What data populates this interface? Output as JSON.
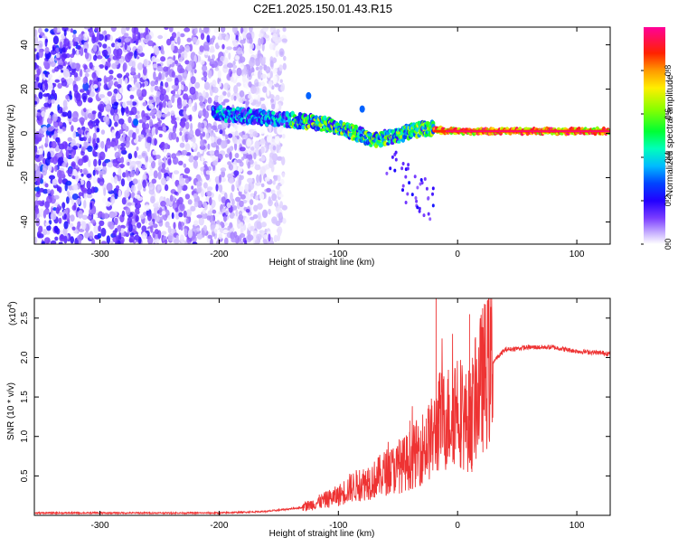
{
  "title": "C2E1.2025.150.01.43.R15",
  "chart_data": [
    {
      "type": "heatmap",
      "xlabel": "Height of straight line (km)",
      "ylabel": "Frequency (Hz)",
      "xlim": [
        -355,
        128
      ],
      "ylim": [
        -50,
        48
      ],
      "xticks": [
        -300,
        -200,
        -100,
        0,
        100
      ],
      "yticks": [
        -40,
        -20,
        0,
        20,
        40
      ],
      "grid": false,
      "colorbar": {
        "label": "Normalized spectral amplitude",
        "range": [
          0,
          1
        ],
        "ticks": [
          "0.0",
          "0.2",
          "0.4",
          "0.6",
          "0.8"
        ],
        "colors": [
          "#ffffff",
          "#9966ff",
          "#3300ff",
          "#0000ff",
          "#00ccff",
          "#00ff99",
          "#00ff00",
          "#ccff00",
          "#ffcc00",
          "#ff3300",
          "#ff0066",
          "#ff0099"
        ]
      },
      "trace": {
        "x": [
          -200,
          -180,
          -160,
          -140,
          -120,
          -100,
          -90,
          -80,
          -70,
          -60,
          -50,
          -40,
          -30,
          -20,
          -10,
          0,
          20,
          40,
          60,
          80,
          100,
          128
        ],
        "y": [
          9,
          8,
          7,
          6,
          5,
          3,
          1,
          -1,
          -3,
          -2,
          -1,
          1,
          2,
          2,
          1,
          1,
          1,
          1,
          1,
          1,
          1,
          1
        ]
      },
      "features": [
        {
          "x": -125,
          "y": 17
        },
        {
          "x": -80,
          "y": 11
        },
        {
          "x": -270,
          "y": 5
        }
      ]
    },
    {
      "type": "line",
      "xlabel": "Height of straight line (km)",
      "ylabel": "SNR (10 * v/v)",
      "y_multiplier": "(x10",
      "y_multiplier_exp": "4",
      "xlim": [
        -355,
        128
      ],
      "ylim": [
        0,
        2.75
      ],
      "xticks": [
        -300,
        -200,
        -100,
        0,
        100
      ],
      "yticks": [
        0.5,
        1.0,
        1.5,
        2.0,
        2.5
      ],
      "ytick_labels": [
        "0.5",
        "1.0",
        "1.5",
        "2.0",
        "2.5"
      ],
      "grid": false,
      "series": [
        {
          "color": "#ee3333",
          "x": [
            -355,
            -300,
            -200,
            -160,
            -130,
            -110,
            -100,
            -90,
            -80,
            -70,
            -60,
            -50,
            -40,
            -30,
            -20,
            -15,
            -10,
            -5,
            0,
            5,
            10,
            20,
            30,
            40,
            60,
            80,
            100,
            128
          ],
          "y": [
            0.03,
            0.03,
            0.03,
            0.05,
            0.1,
            0.2,
            0.25,
            0.35,
            0.4,
            0.45,
            0.55,
            0.6,
            0.7,
            0.85,
            1.0,
            1.2,
            1.2,
            1.3,
            1.45,
            1.2,
            1.2,
            1.7,
            1.95,
            2.1,
            2.13,
            2.13,
            2.08,
            2.05
          ]
        }
      ],
      "spikes": [
        {
          "x": -18,
          "y": 2.75
        },
        {
          "x": -16,
          "y": 1.7
        },
        {
          "x": 10,
          "y": 2.55
        },
        {
          "x": 12,
          "y": 0.55
        },
        {
          "x": -40,
          "y": 1.2
        },
        {
          "x": -75,
          "y": 0.6
        }
      ]
    }
  ]
}
